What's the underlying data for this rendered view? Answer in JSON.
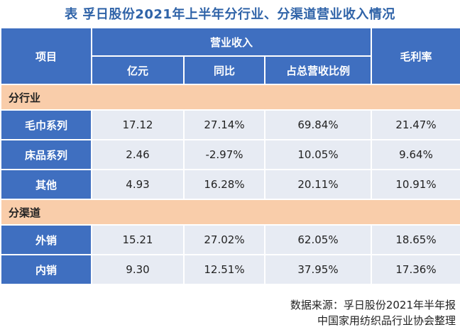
{
  "title": "表 孚日股份2021年上半年分行业、分渠道营业收入情况",
  "header": {
    "item": "项目",
    "revenue_group": "营业收入",
    "col_amount": "亿元",
    "col_yoy": "同比",
    "col_share": "占总营收比例",
    "col_margin": "毛利率"
  },
  "sections": [
    {
      "label": "分行业",
      "rows": [
        {
          "name": "毛巾系列",
          "amount": "17.12",
          "yoy": "27.14%",
          "share": "69.84%",
          "margin": "21.47%"
        },
        {
          "name": "床品系列",
          "amount": "2.46",
          "yoy": "-2.97%",
          "share": "10.05%",
          "margin": "9.64%"
        },
        {
          "name": "其他",
          "amount": "4.93",
          "yoy": "16.28%",
          "share": "20.11%",
          "margin": "10.91%"
        }
      ]
    },
    {
      "label": "分渠道",
      "rows": [
        {
          "name": "外销",
          "amount": "15.21",
          "yoy": "27.02%",
          "share": "62.05%",
          "margin": "18.65%"
        },
        {
          "name": "内销",
          "amount": "9.30",
          "yoy": "12.51%",
          "share": "37.95%",
          "margin": "17.36%"
        }
      ]
    }
  ],
  "source": {
    "line1": "数据来源：孚日股份2021年半年报",
    "line2": "中国家用纺织品行业协会整理"
  },
  "colors": {
    "header_blue": "#3f6fc0",
    "section_orange": "#f9cdaa",
    "cell_gray": "#e7ebf3",
    "title_blue": "#2f63a8"
  }
}
